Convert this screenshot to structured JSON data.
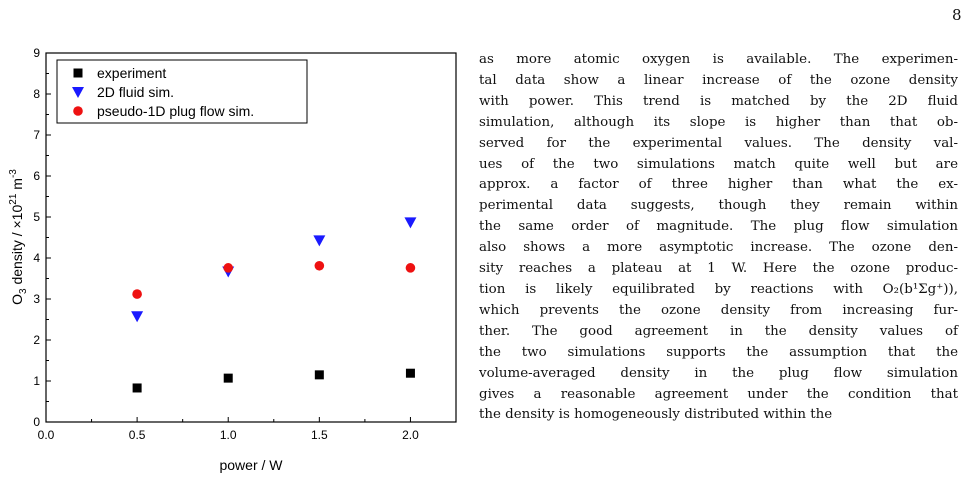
{
  "page": {
    "number": "8"
  },
  "chart_data": {
    "type": "scatter",
    "title": "",
    "xlabel": "power / W",
    "ylabel": {
      "prefix": "O",
      "sub": "3",
      "mid": " density / ×10",
      "sup1": "21",
      "unit": " m",
      "sup2": "-3"
    },
    "xlim": [
      0.0,
      2.25
    ],
    "ylim": [
      0,
      9
    ],
    "x_ticks": [
      "0.0",
      "0.5",
      "1.0",
      "1.5",
      "2.0"
    ],
    "y_ticks": [
      "0",
      "1",
      "2",
      "3",
      "4",
      "5",
      "6",
      "7",
      "8",
      "9"
    ],
    "x_tick_values": [
      0.0,
      0.5,
      1.0,
      1.5,
      2.0
    ],
    "y_tick_values": [
      0,
      1,
      2,
      3,
      4,
      5,
      6,
      7,
      8,
      9
    ],
    "grid": false,
    "legend_position": "top-left",
    "series": [
      {
        "name": "experiment",
        "marker": "square",
        "color": "#000000",
        "points": [
          {
            "x": 0.5,
            "y": 0.83
          },
          {
            "x": 1.0,
            "y": 1.07
          },
          {
            "x": 1.5,
            "y": 1.15
          },
          {
            "x": 2.0,
            "y": 1.19,
            "err": 0.08
          }
        ]
      },
      {
        "name": "2D fluid sim.",
        "marker": "triangle-down",
        "color": "#1a1aff",
        "points": [
          {
            "x": 0.5,
            "y": 2.58
          },
          {
            "x": 1.0,
            "y": 3.67
          },
          {
            "x": 1.5,
            "y": 4.43
          },
          {
            "x": 2.0,
            "y": 4.87
          }
        ]
      },
      {
        "name": "pseudo-1D plug flow sim.",
        "marker": "circle",
        "color": "#ee1111",
        "points": [
          {
            "x": 0.5,
            "y": 3.12
          },
          {
            "x": 1.0,
            "y": 3.76
          },
          {
            "x": 1.5,
            "y": 3.81
          },
          {
            "x": 2.0,
            "y": 3.76
          }
        ]
      }
    ]
  },
  "text": {
    "lines": [
      "as more atomic oxygen is available. The experimen-",
      "tal data show a linear increase of the ozone density",
      "with power. This trend is matched by the 2D fluid",
      "simulation, although its slope is higher than that ob-",
      "served for the experimental values. The density val-",
      "ues of the two simulations match quite well but are",
      "approx. a factor of three higher than what the ex-",
      "perimental data suggests, though they remain within",
      "the same order of magnitude. The plug flow simulation",
      "also shows a more asymptotic increase. The ozone den-",
      "sity reaches a plateau at 1 W. Here the ozone produc-",
      "tion is likely equilibrated by reactions with O₂(b¹Σg⁺)),",
      "which prevents the ozone density from increasing fur-",
      "ther. The good agreement in the density values of",
      "the two simulations supports the assumption that the",
      "volume-averaged density in the plug flow simulation",
      "gives a reasonable agreement under the condition that",
      "the density is homogeneously distributed within the"
    ]
  }
}
